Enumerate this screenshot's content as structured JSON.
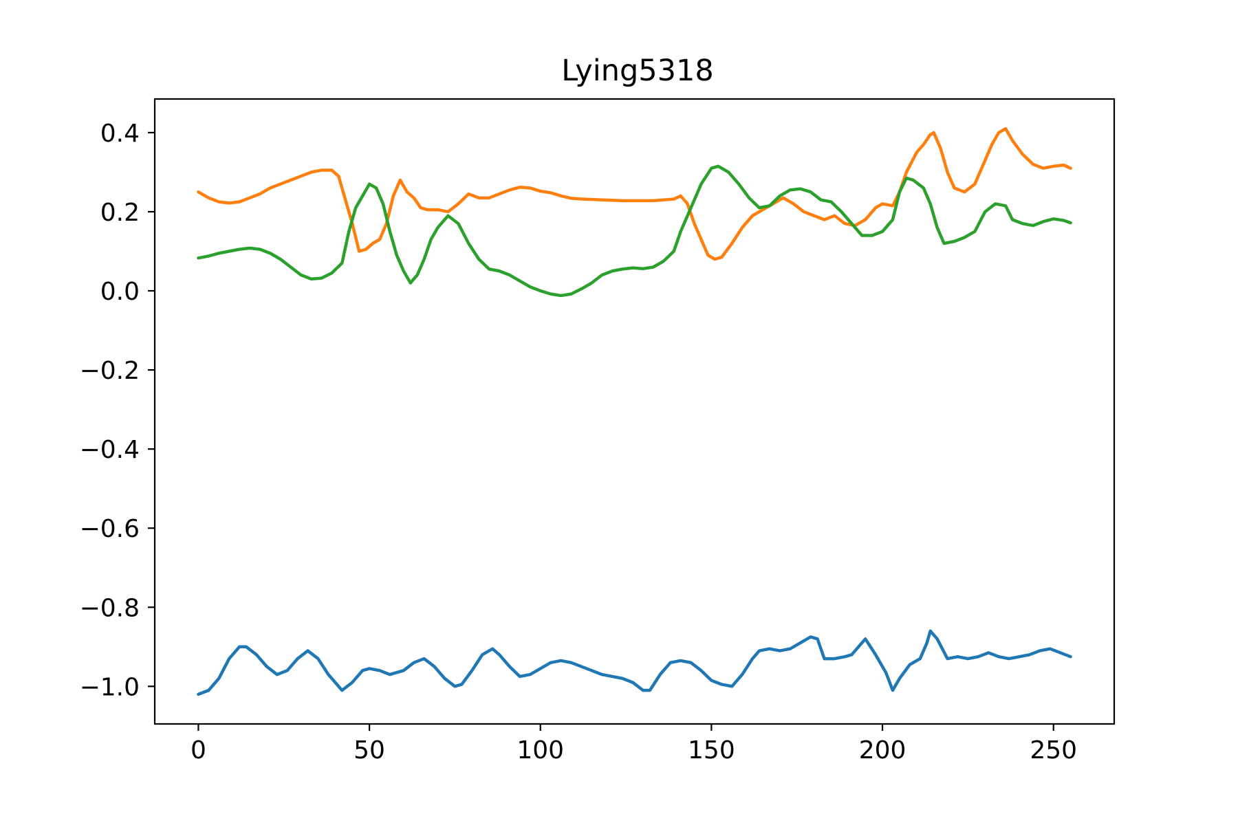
{
  "chart_data": {
    "type": "line",
    "title": "Lying5318",
    "xlabel": "",
    "ylabel": "",
    "xlim": [
      -12.75,
      267.75
    ],
    "ylim": [
      -1.095,
      0.485
    ],
    "xticks": [
      0,
      50,
      100,
      150,
      200,
      250
    ],
    "yticks": [
      0.4,
      0.2,
      0.0,
      -0.2,
      -0.4,
      -0.6,
      -0.8,
      -1.0
    ],
    "xtick_labels": [
      "0",
      "50",
      "100",
      "150",
      "200",
      "250"
    ],
    "ytick_labels": [
      "0.4",
      "0.2",
      "0.0",
      "−0.2",
      "−0.4",
      "−0.6",
      "−0.8",
      "−1.0"
    ],
    "grid": false,
    "legend": "none",
    "series": [
      {
        "color": "#1f77b4",
        "points": [
          [
            0,
            -1.02
          ],
          [
            3,
            -1.01
          ],
          [
            6,
            -0.98
          ],
          [
            9,
            -0.93
          ],
          [
            12,
            -0.9
          ],
          [
            14,
            -0.9
          ],
          [
            17,
            -0.92
          ],
          [
            20,
            -0.95
          ],
          [
            23,
            -0.97
          ],
          [
            26,
            -0.96
          ],
          [
            29,
            -0.93
          ],
          [
            32,
            -0.91
          ],
          [
            35,
            -0.93
          ],
          [
            38,
            -0.97
          ],
          [
            41,
            -1.0
          ],
          [
            42,
            -1.01
          ],
          [
            45,
            -0.99
          ],
          [
            48,
            -0.96
          ],
          [
            50,
            -0.955
          ],
          [
            53,
            -0.96
          ],
          [
            56,
            -0.97
          ],
          [
            60,
            -0.96
          ],
          [
            63,
            -0.94
          ],
          [
            66,
            -0.93
          ],
          [
            69,
            -0.95
          ],
          [
            72,
            -0.98
          ],
          [
            75,
            -1.0
          ],
          [
            77,
            -0.995
          ],
          [
            80,
            -0.96
          ],
          [
            83,
            -0.92
          ],
          [
            86,
            -0.905
          ],
          [
            88,
            -0.92
          ],
          [
            91,
            -0.95
          ],
          [
            94,
            -0.975
          ],
          [
            97,
            -0.97
          ],
          [
            100,
            -0.955
          ],
          [
            103,
            -0.94
          ],
          [
            106,
            -0.935
          ],
          [
            109,
            -0.94
          ],
          [
            112,
            -0.95
          ],
          [
            115,
            -0.96
          ],
          [
            118,
            -0.97
          ],
          [
            121,
            -0.975
          ],
          [
            124,
            -0.98
          ],
          [
            127,
            -0.99
          ],
          [
            130,
            -1.01
          ],
          [
            132,
            -1.01
          ],
          [
            135,
            -0.97
          ],
          [
            138,
            -0.94
          ],
          [
            141,
            -0.935
          ],
          [
            144,
            -0.94
          ],
          [
            147,
            -0.96
          ],
          [
            150,
            -0.985
          ],
          [
            153,
            -0.995
          ],
          [
            156,
            -1.0
          ],
          [
            159,
            -0.97
          ],
          [
            162,
            -0.93
          ],
          [
            164,
            -0.91
          ],
          [
            167,
            -0.905
          ],
          [
            170,
            -0.91
          ],
          [
            173,
            -0.905
          ],
          [
            176,
            -0.89
          ],
          [
            179,
            -0.875
          ],
          [
            181,
            -0.88
          ],
          [
            183,
            -0.93
          ],
          [
            186,
            -0.93
          ],
          [
            189,
            -0.925
          ],
          [
            191,
            -0.92
          ],
          [
            193,
            -0.9
          ],
          [
            195,
            -0.88
          ],
          [
            198,
            -0.92
          ],
          [
            201,
            -0.965
          ],
          [
            203,
            -1.01
          ],
          [
            205,
            -0.98
          ],
          [
            208,
            -0.945
          ],
          [
            211,
            -0.93
          ],
          [
            213,
            -0.89
          ],
          [
            214,
            -0.86
          ],
          [
            216,
            -0.88
          ],
          [
            219,
            -0.93
          ],
          [
            222,
            -0.925
          ],
          [
            225,
            -0.93
          ],
          [
            228,
            -0.925
          ],
          [
            231,
            -0.915
          ],
          [
            234,
            -0.925
          ],
          [
            237,
            -0.93
          ],
          [
            240,
            -0.925
          ],
          [
            243,
            -0.92
          ],
          [
            246,
            -0.91
          ],
          [
            249,
            -0.905
          ],
          [
            252,
            -0.915
          ],
          [
            255,
            -0.925
          ]
        ]
      },
      {
        "color": "#ff7f0e",
        "points": [
          [
            0,
            0.25
          ],
          [
            3,
            0.235
          ],
          [
            6,
            0.225
          ],
          [
            9,
            0.222
          ],
          [
            12,
            0.225
          ],
          [
            15,
            0.235
          ],
          [
            18,
            0.245
          ],
          [
            21,
            0.26
          ],
          [
            24,
            0.27
          ],
          [
            27,
            0.28
          ],
          [
            30,
            0.29
          ],
          [
            33,
            0.3
          ],
          [
            36,
            0.305
          ],
          [
            39,
            0.305
          ],
          [
            41,
            0.29
          ],
          [
            43,
            0.23
          ],
          [
            45,
            0.17
          ],
          [
            47,
            0.1
          ],
          [
            49,
            0.105
          ],
          [
            51,
            0.12
          ],
          [
            53,
            0.13
          ],
          [
            55,
            0.17
          ],
          [
            57,
            0.24
          ],
          [
            59,
            0.28
          ],
          [
            61,
            0.25
          ],
          [
            63,
            0.235
          ],
          [
            65,
            0.21
          ],
          [
            67,
            0.205
          ],
          [
            70,
            0.205
          ],
          [
            73,
            0.2
          ],
          [
            76,
            0.22
          ],
          [
            79,
            0.245
          ],
          [
            82,
            0.235
          ],
          [
            85,
            0.235
          ],
          [
            88,
            0.245
          ],
          [
            91,
            0.255
          ],
          [
            94,
            0.262
          ],
          [
            97,
            0.26
          ],
          [
            100,
            0.252
          ],
          [
            103,
            0.248
          ],
          [
            106,
            0.24
          ],
          [
            109,
            0.234
          ],
          [
            112,
            0.232
          ],
          [
            115,
            0.231
          ],
          [
            118,
            0.23
          ],
          [
            121,
            0.229
          ],
          [
            124,
            0.228
          ],
          [
            127,
            0.228
          ],
          [
            130,
            0.228
          ],
          [
            133,
            0.228
          ],
          [
            136,
            0.23
          ],
          [
            139,
            0.232
          ],
          [
            141,
            0.24
          ],
          [
            143,
            0.22
          ],
          [
            145,
            0.17
          ],
          [
            147,
            0.13
          ],
          [
            149,
            0.09
          ],
          [
            151,
            0.08
          ],
          [
            153,
            0.085
          ],
          [
            156,
            0.12
          ],
          [
            159,
            0.16
          ],
          [
            162,
            0.19
          ],
          [
            165,
            0.205
          ],
          [
            168,
            0.22
          ],
          [
            171,
            0.235
          ],
          [
            174,
            0.22
          ],
          [
            177,
            0.2
          ],
          [
            180,
            0.19
          ],
          [
            183,
            0.18
          ],
          [
            186,
            0.19
          ],
          [
            189,
            0.17
          ],
          [
            192,
            0.165
          ],
          [
            195,
            0.18
          ],
          [
            198,
            0.21
          ],
          [
            200,
            0.22
          ],
          [
            203,
            0.215
          ],
          [
            205,
            0.25
          ],
          [
            207,
            0.3
          ],
          [
            210,
            0.35
          ],
          [
            212,
            0.37
          ],
          [
            214,
            0.395
          ],
          [
            215,
            0.4
          ],
          [
            217,
            0.36
          ],
          [
            219,
            0.3
          ],
          [
            221,
            0.26
          ],
          [
            224,
            0.25
          ],
          [
            227,
            0.27
          ],
          [
            230,
            0.33
          ],
          [
            232,
            0.37
          ],
          [
            234,
            0.4
          ],
          [
            236,
            0.41
          ],
          [
            238,
            0.38
          ],
          [
            241,
            0.345
          ],
          [
            244,
            0.32
          ],
          [
            247,
            0.31
          ],
          [
            250,
            0.315
          ],
          [
            253,
            0.318
          ],
          [
            255,
            0.31
          ]
        ]
      },
      {
        "color": "#2ca02c",
        "points": [
          [
            0,
            0.083
          ],
          [
            3,
            0.088
          ],
          [
            6,
            0.095
          ],
          [
            9,
            0.1
          ],
          [
            12,
            0.105
          ],
          [
            15,
            0.108
          ],
          [
            18,
            0.105
          ],
          [
            21,
            0.095
          ],
          [
            24,
            0.08
          ],
          [
            27,
            0.06
          ],
          [
            30,
            0.04
          ],
          [
            33,
            0.03
          ],
          [
            36,
            0.032
          ],
          [
            39,
            0.045
          ],
          [
            42,
            0.07
          ],
          [
            44,
            0.15
          ],
          [
            46,
            0.21
          ],
          [
            48,
            0.24
          ],
          [
            50,
            0.27
          ],
          [
            52,
            0.26
          ],
          [
            54,
            0.22
          ],
          [
            56,
            0.15
          ],
          [
            58,
            0.09
          ],
          [
            60,
            0.05
          ],
          [
            62,
            0.02
          ],
          [
            64,
            0.04
          ],
          [
            66,
            0.08
          ],
          [
            68,
            0.13
          ],
          [
            70,
            0.16
          ],
          [
            73,
            0.19
          ],
          [
            76,
            0.17
          ],
          [
            79,
            0.12
          ],
          [
            82,
            0.08
          ],
          [
            85,
            0.055
          ],
          [
            88,
            0.05
          ],
          [
            91,
            0.04
          ],
          [
            94,
            0.025
          ],
          [
            97,
            0.01
          ],
          [
            100,
            0.0
          ],
          [
            103,
            -0.008
          ],
          [
            106,
            -0.012
          ],
          [
            109,
            -0.008
          ],
          [
            112,
            0.005
          ],
          [
            115,
            0.02
          ],
          [
            118,
            0.04
          ],
          [
            121,
            0.05
          ],
          [
            124,
            0.055
          ],
          [
            127,
            0.058
          ],
          [
            130,
            0.056
          ],
          [
            133,
            0.06
          ],
          [
            136,
            0.075
          ],
          [
            139,
            0.1
          ],
          [
            141,
            0.15
          ],
          [
            143,
            0.19
          ],
          [
            145,
            0.23
          ],
          [
            147,
            0.27
          ],
          [
            150,
            0.31
          ],
          [
            152,
            0.315
          ],
          [
            155,
            0.3
          ],
          [
            158,
            0.27
          ],
          [
            161,
            0.235
          ],
          [
            164,
            0.21
          ],
          [
            167,
            0.215
          ],
          [
            170,
            0.24
          ],
          [
            173,
            0.255
          ],
          [
            176,
            0.258
          ],
          [
            179,
            0.25
          ],
          [
            182,
            0.23
          ],
          [
            185,
            0.225
          ],
          [
            188,
            0.2
          ],
          [
            191,
            0.17
          ],
          [
            194,
            0.14
          ],
          [
            197,
            0.14
          ],
          [
            200,
            0.15
          ],
          [
            203,
            0.18
          ],
          [
            205,
            0.25
          ],
          [
            207,
            0.285
          ],
          [
            209,
            0.28
          ],
          [
            212,
            0.26
          ],
          [
            214,
            0.22
          ],
          [
            216,
            0.16
          ],
          [
            218,
            0.12
          ],
          [
            221,
            0.125
          ],
          [
            224,
            0.135
          ],
          [
            227,
            0.15
          ],
          [
            230,
            0.2
          ],
          [
            233,
            0.22
          ],
          [
            236,
            0.215
          ],
          [
            238,
            0.18
          ],
          [
            241,
            0.17
          ],
          [
            244,
            0.165
          ],
          [
            247,
            0.175
          ],
          [
            250,
            0.182
          ],
          [
            253,
            0.178
          ],
          [
            255,
            0.172
          ]
        ]
      }
    ]
  }
}
